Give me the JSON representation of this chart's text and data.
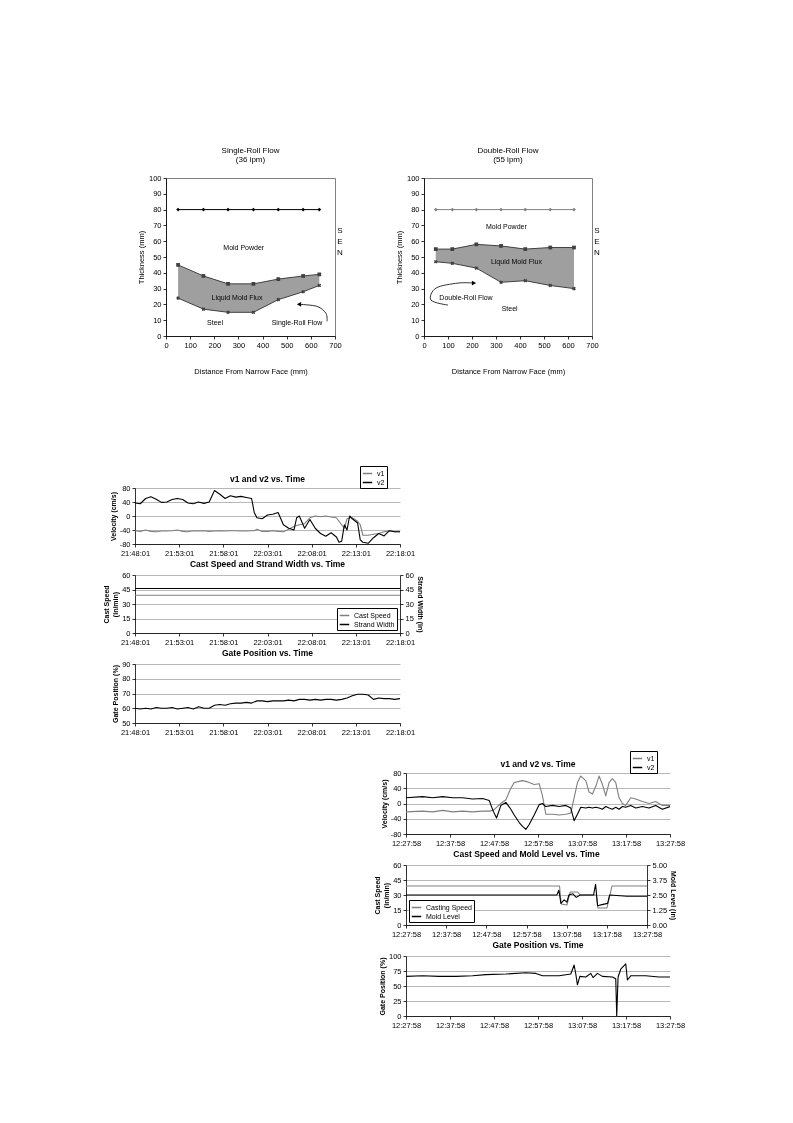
{
  "chart_data": [
    {
      "type": "line",
      "title": "Single-Roll Flow",
      "subtitle": "(36 ipm)",
      "xlabel": "Distance From Narrow Face (mm)",
      "ylabel": "Thickness (mm)",
      "x": [
        50,
        155,
        257,
        362,
        465,
        568,
        635
      ],
      "xlim": [
        0,
        700
      ],
      "xticks": [
        0,
        100,
        200,
        300,
        400,
        500,
        600,
        700
      ],
      "ylim": [
        0,
        100
      ],
      "yticks": [
        0,
        10,
        20,
        30,
        40,
        50,
        60,
        70,
        80,
        90,
        100
      ],
      "grid": false,
      "series": [
        {
          "color": "#000000",
          "marker": "diamond",
          "values": [
            80,
            80,
            80,
            80,
            80,
            80,
            80
          ]
        },
        {
          "color": "#404040",
          "marker": "square",
          "values": [
            45,
            38,
            33,
            33,
            36,
            38,
            39
          ],
          "lower": [
            24,
            17,
            15,
            15,
            23,
            28,
            32
          ],
          "upper": [
            45,
            38,
            33,
            33,
            36,
            38,
            39
          ]
        },
        {
          "color": "#404040",
          "marker": "cross",
          "values": [
            24,
            17,
            15,
            15,
            23,
            28,
            32
          ]
        }
      ],
      "annotations": [
        "Mold Powder",
        "Liquid Mold Flux",
        "Steel",
        "Single-Roll Flow",
        "SEN"
      ]
    },
    {
      "type": "line",
      "title": "Double-Roll Flow",
      "subtitle": "(55 ipm)",
      "xlabel": "Distance From Narrow Face (mm)",
      "ylabel": "Thickness (mm)",
      "x": [
        49,
        118,
        218,
        321,
        422,
        526,
        625
      ],
      "xlim": [
        0,
        700
      ],
      "xticks": [
        0,
        100,
        200,
        300,
        400,
        500,
        600,
        700
      ],
      "ylim": [
        0,
        100
      ],
      "yticks": [
        0,
        10,
        20,
        30,
        40,
        50,
        60,
        70,
        80,
        90,
        100
      ],
      "grid": false,
      "series": [
        {
          "color": "#808080",
          "marker": "diamond",
          "values": [
            80,
            80,
            80,
            80,
            80,
            80,
            80
          ]
        },
        {
          "color": "#404040",
          "marker": "square",
          "values": [
            55,
            55,
            58,
            57,
            55,
            56,
            56
          ],
          "lower": [
            47,
            46,
            43,
            34,
            35,
            32,
            30
          ],
          "upper": [
            55,
            55,
            58,
            57,
            55,
            56,
            56
          ]
        },
        {
          "color": "#404040",
          "marker": "cross",
          "values": [
            47,
            46,
            43,
            34,
            35,
            32,
            30
          ]
        }
      ],
      "annotations": [
        "Mold Powder",
        "Liquid Mold Flux",
        "Steel",
        "Double-Roll Flow",
        "SEN"
      ]
    },
    {
      "type": "line",
      "title": "v1 and v2 vs. Time",
      "ylabel": "Velocity (cm/s)",
      "grid": "y",
      "legend": "top right",
      "x": [
        21.8003,
        21.8103,
        21.8203,
        21.8303,
        21.8403,
        21.8503,
        21.8603,
        21.8703,
        21.8803,
        21.8903,
        21.9003,
        21.9103,
        21.9203,
        21.9303,
        21.9403,
        21.9503,
        21.9603,
        21.9703,
        21.9803,
        21.9903,
        22.0003,
        22.0103,
        22.0203,
        22.0253,
        22.0303,
        22.0403,
        22.0503,
        22.0603,
        22.0703,
        22.0803,
        22.0903,
        22.1003,
        22.1053,
        22.1103,
        22.1203,
        22.1303,
        22.1403,
        22.1503,
        22.1603,
        22.1703,
        22.1803,
        22.1853,
        22.1903,
        22.1953,
        22.2003,
        22.2053,
        22.2103,
        22.2203,
        22.2253,
        22.2303,
        22.2403,
        22.2503,
        22.2603,
        22.2703,
        22.2803,
        22.2903,
        22.3003
      ],
      "xlim": [
        21.8003,
        22.3003
      ],
      "xticks": [
        {
          "value": 21.8003,
          "label": "21:48:01"
        },
        {
          "value": 21.8836,
          "label": "21:53:01"
        },
        {
          "value": 21.9669,
          "label": "21:58:01"
        },
        {
          "value": 22.0503,
          "label": "22:03:01"
        },
        {
          "value": 22.1336,
          "label": "22:08:01"
        },
        {
          "value": 22.2169,
          "label": "22:13:01"
        },
        {
          "value": 22.3003,
          "label": "22:18:01"
        }
      ],
      "ylim": [
        -80,
        80
      ],
      "yticks": [
        -80,
        -40,
        0,
        40,
        80
      ],
      "series": [
        {
          "name": "v1",
          "color": "#7f7f7f",
          "values": [
            -42,
            -44,
            -40,
            -44,
            -45,
            -43,
            -43,
            -42,
            -40,
            -44,
            -45,
            -42,
            -43,
            -42,
            -44,
            -43,
            -42,
            -43,
            -42,
            -42,
            -43,
            -43,
            -42,
            -42,
            -38,
            -44,
            -44,
            -42,
            -44,
            -45,
            -38,
            -30,
            -27,
            -25,
            -22,
            -5,
            0,
            -2,
            0,
            -3,
            -5,
            -15,
            -25,
            -35,
            -8,
            -5,
            -5,
            -15,
            -25,
            -55,
            -55,
            -52,
            -50,
            -45,
            -42,
            -45,
            -45
          ]
        },
        {
          "name": "v2",
          "color": "#000000",
          "values": [
            37,
            35,
            50,
            55,
            48,
            39,
            40,
            47,
            50,
            47,
            37,
            35,
            40,
            36,
            40,
            73,
            62,
            50,
            58,
            54,
            56,
            53,
            50,
            10,
            -5,
            -8,
            3,
            5,
            10,
            -25,
            -35,
            -40,
            -5,
            0,
            -35,
            -10,
            -35,
            -50,
            -58,
            -48,
            -60,
            -75,
            -72,
            -25,
            -40,
            0,
            -8,
            -20,
            -68,
            -75,
            -78,
            -62,
            -50,
            -57,
            -42,
            -45,
            -45
          ]
        }
      ]
    },
    {
      "type": "line",
      "title": "Cast Speed and Strand Width vs. Time",
      "ylabel": "Cast Speed (in/min)",
      "y2label": "Strand Width (in)",
      "grid": "y",
      "legend": "bottom right",
      "x": [
        21.8003,
        22.3003
      ],
      "xlim": [
        21.8003,
        22.3003
      ],
      "xticks": [
        {
          "value": 21.8003,
          "label": "21:48:01"
        },
        {
          "value": 21.8836,
          "label": "21:53:01"
        },
        {
          "value": 21.9669,
          "label": "21:58:01"
        },
        {
          "value": 22.0503,
          "label": "22:03:01"
        },
        {
          "value": 22.1336,
          "label": "22:08:01"
        },
        {
          "value": 22.2169,
          "label": "22:13:01"
        },
        {
          "value": 22.3003,
          "label": "22:18:01"
        }
      ],
      "ylim": [
        0,
        60
      ],
      "yticks": [
        0,
        15,
        30,
        45,
        60
      ],
      "y2lim": [
        0,
        60
      ],
      "y2ticks": [
        0,
        15,
        30,
        45,
        60
      ],
      "series": [
        {
          "name": "Cast Speed",
          "color": "#7f7f7f",
          "values": [
            39,
            39
          ]
        },
        {
          "name": "Strand Width",
          "color": "#000000",
          "axis": "y2",
          "values": [
            46,
            46
          ]
        }
      ]
    },
    {
      "type": "line",
      "title": "Gate Position vs. Time",
      "ylabel": "Gate Position (%)",
      "grid": "y",
      "x": [
        21.8003,
        21.8103,
        21.8203,
        21.8303,
        21.8403,
        21.8503,
        21.8603,
        21.8703,
        21.8803,
        21.8903,
        21.9003,
        21.9103,
        21.9203,
        21.9303,
        21.9403,
        21.9503,
        21.9603,
        21.9703,
        21.9803,
        21.9903,
        22.0003,
        22.0103,
        22.0203,
        22.0303,
        22.0403,
        22.0503,
        22.0603,
        22.0703,
        22.0803,
        22.0903,
        22.1003,
        22.1103,
        22.1203,
        22.1303,
        22.1403,
        22.1503,
        22.1603,
        22.1703,
        22.1803,
        22.1903,
        22.2003,
        22.2103,
        22.2203,
        22.2303,
        22.2403,
        22.2503,
        22.2603,
        22.2703,
        22.2803,
        22.2903,
        22.3003
      ],
      "xlim": [
        21.8003,
        22.3003
      ],
      "xticks": [
        {
          "value": 21.8003,
          "label": "21:48:01"
        },
        {
          "value": 21.8836,
          "label": "21:53:01"
        },
        {
          "value": 21.9669,
          "label": "21:58:01"
        },
        {
          "value": 22.0503,
          "label": "22:03:01"
        },
        {
          "value": 22.1336,
          "label": "22:08:01"
        },
        {
          "value": 22.2169,
          "label": "22:13:01"
        },
        {
          "value": 22.3003,
          "label": "22:18:01"
        }
      ],
      "ylim": [
        50,
        90
      ],
      "yticks": [
        50,
        60,
        70,
        80,
        90
      ],
      "series": [
        {
          "color": "#000000",
          "values": [
            60,
            59.5,
            60,
            59.5,
            60.5,
            60,
            60,
            60.5,
            59.5,
            60,
            60.5,
            59.5,
            61,
            60,
            60,
            62,
            62.5,
            62,
            63,
            63.5,
            63.5,
            64,
            63.5,
            65,
            65,
            64.5,
            65,
            65,
            65,
            65.5,
            65,
            66,
            66,
            65.5,
            66,
            65.5,
            66,
            66,
            65.5,
            66,
            67,
            68.5,
            69.5,
            69.5,
            69,
            66,
            67,
            66.5,
            66.5,
            66,
            66.5
          ]
        }
      ]
    },
    {
      "type": "line",
      "title": "v1 and v2 vs. Time",
      "ylabel": "Velocity (cm/s)",
      "grid": "y",
      "legend": "top right",
      "x": [
        12.4661,
        12.5292,
        12.567,
        12.6048,
        12.6426,
        12.6805,
        12.7183,
        12.7561,
        12.7814,
        12.7965,
        12.8091,
        12.8255,
        12.8444,
        12.8633,
        12.8759,
        12.8949,
        12.9075,
        12.9201,
        12.9327,
        12.9516,
        12.9705,
        12.9831,
        12.9957,
        13.021,
        13.0462,
        13.0714,
        13.0903,
        13.1029,
        13.1155,
        13.1281,
        13.1471,
        13.1597,
        13.1723,
        13.1849,
        13.1975,
        13.2101,
        13.2227,
        13.2353,
        13.2479,
        13.2606,
        13.2732,
        13.2858,
        13.2984,
        13.3173,
        13.3362,
        13.3614,
        13.3867,
        13.4119,
        13.4371,
        13.4661
      ],
      "xlim": [
        12.4661,
        13.4661
      ],
      "xticks": [
        {
          "value": 12.4661,
          "label": "12:27:58"
        },
        {
          "value": 12.6328,
          "label": "12:37:58"
        },
        {
          "value": 12.7994,
          "label": "12:47:58"
        },
        {
          "value": 12.9661,
          "label": "12:57:58"
        },
        {
          "value": 13.1328,
          "label": "13:07:58"
        },
        {
          "value": 13.2994,
          "label": "13:17:58"
        },
        {
          "value": 13.4661,
          "label": "13:27:58"
        }
      ],
      "ylim": [
        -80,
        80
      ],
      "yticks": [
        -80,
        -40,
        0,
        40,
        80
      ],
      "series": [
        {
          "name": "v1",
          "color": "#7f7f7f",
          "values": [
            -22,
            -20,
            -22,
            -18,
            -22,
            -20,
            -22,
            -20,
            -20,
            -18,
            -10,
            0,
            10,
            40,
            55,
            58,
            60,
            58,
            55,
            50,
            52,
            20,
            -28,
            -28,
            -30,
            -28,
            -25,
            15,
            55,
            72,
            60,
            30,
            25,
            45,
            72,
            50,
            20,
            55,
            65,
            55,
            15,
            0,
            -5,
            15,
            12,
            5,
            0,
            5,
            -5,
            -5
          ]
        },
        {
          "name": "v2",
          "color": "#000000",
          "values": [
            15,
            18,
            15,
            18,
            15,
            15,
            12,
            13,
            8,
            -20,
            -38,
            -5,
            3,
            -15,
            -30,
            -50,
            -60,
            -68,
            -55,
            -30,
            -3,
            0,
            -8,
            -5,
            -8,
            -5,
            -12,
            -45,
            -28,
            -10,
            -12,
            -10,
            -12,
            -10,
            -12,
            -15,
            -8,
            -12,
            -15,
            -10,
            -15,
            -8,
            -10,
            -5,
            -12,
            -8,
            -12,
            -5,
            -15,
            -8
          ]
        }
      ]
    },
    {
      "type": "line",
      "title": "Cast Speed and Mold Level vs. Time",
      "ylabel": "Cast Speed (in/min)",
      "y2label": "Mold Level (in)",
      "grid": "y",
      "legend": "bottom left",
      "xlim": [
        12.4661,
        13.4661
      ],
      "xticks": [
        {
          "value": 12.4661,
          "label": "12:27:58"
        },
        {
          "value": 12.6328,
          "label": "12:37:58"
        },
        {
          "value": 12.7994,
          "label": "12:47:58"
        },
        {
          "value": 12.9661,
          "label": "12:57:58"
        },
        {
          "value": 13.1328,
          "label": "13:07:58"
        },
        {
          "value": 13.2994,
          "label": "13:17:58"
        },
        {
          "value": 13.4661,
          "label": "13:27:58"
        }
      ],
      "ylim": [
        0,
        60
      ],
      "yticks": [
        0,
        15,
        30,
        45,
        60
      ],
      "y2lim": [
        0,
        5
      ],
      "y2ticks": [
        {
          "value": 0,
          "label": "0.00"
        },
        1.25,
        {
          "value": 2.5,
          "label": "2.50"
        },
        3.75,
        {
          "value": 5,
          "label": "5.00"
        }
      ],
      "series": [
        {
          "name": "Casting Speed",
          "color": "#7f7f7f",
          "x": [
            12.4661,
            13.1032,
            13.1101,
            13.1337,
            13.1475,
            13.178,
            13.1891,
            13.2556,
            13.2625,
            13.2999,
            13.3207,
            13.4661
          ],
          "values": [
            39,
            39,
            21,
            20,
            33,
            33,
            30,
            30,
            17,
            17,
            39,
            39
          ]
        },
        {
          "name": "Mold Level",
          "color": "#000000",
          "axis": "y2",
          "x": [
            12.4661,
            12.5797,
            12.7182,
            12.8567,
            12.9952,
            13.0921,
            13.1004,
            13.1088,
            13.1226,
            13.1337,
            13.142,
            13.1586,
            13.1725,
            13.1891,
            13.2445,
            13.2528,
            13.2611,
            13.2791,
            13.3027,
            13.311,
            13.383,
            13.4661
          ],
          "values": [
            2.5,
            2.5,
            2.5,
            2.5,
            2.5,
            2.5,
            2.9,
            1.8,
            2.1,
            1.9,
            2.5,
            2.6,
            2.3,
            2.5,
            2.5,
            3.4,
            1.6,
            1.7,
            1.8,
            2.5,
            2.4,
            2.4
          ]
        }
      ]
    },
    {
      "type": "line",
      "title": "Gate Position vs. Time",
      "ylabel": "Gate Position (%)",
      "grid": "y",
      "x": [
        12.4661,
        12.5292,
        12.5922,
        12.6553,
        12.7183,
        12.7687,
        12.8444,
        12.9201,
        12.9579,
        12.9831,
        13.0462,
        13.0903,
        13.1029,
        13.1092,
        13.1155,
        13.1244,
        13.1471,
        13.166,
        13.1748,
        13.1912,
        13.2101,
        13.2479,
        13.2606,
        13.2643,
        13.2694,
        13.2795,
        13.2984,
        13.3047,
        13.3173,
        13.374,
        13.4245,
        13.4661
      ],
      "xlim": [
        12.4661,
        13.4661
      ],
      "xticks": [
        {
          "value": 12.4661,
          "label": "12:27:58"
        },
        {
          "value": 12.6328,
          "label": "12:37:58"
        },
        {
          "value": 12.7994,
          "label": "12:47:58"
        },
        {
          "value": 12.9661,
          "label": "12:57:58"
        },
        {
          "value": 13.1328,
          "label": "13:07:58"
        },
        {
          "value": 13.2994,
          "label": "13:17:58"
        },
        {
          "value": 13.4661,
          "label": "13:27:58"
        }
      ],
      "ylim": [
        0,
        100
      ],
      "yticks": [
        0,
        25,
        50,
        75,
        100
      ],
      "series": [
        {
          "color": "#000000",
          "values": [
            66,
            67,
            66,
            66,
            67,
            69,
            70,
            72,
            71,
            67,
            67,
            70,
            85,
            70,
            52,
            66,
            65,
            71,
            64,
            71,
            66,
            65,
            62,
            0,
            65,
            78,
            87,
            60,
            67,
            67,
            65,
            65
          ]
        }
      ]
    }
  ]
}
